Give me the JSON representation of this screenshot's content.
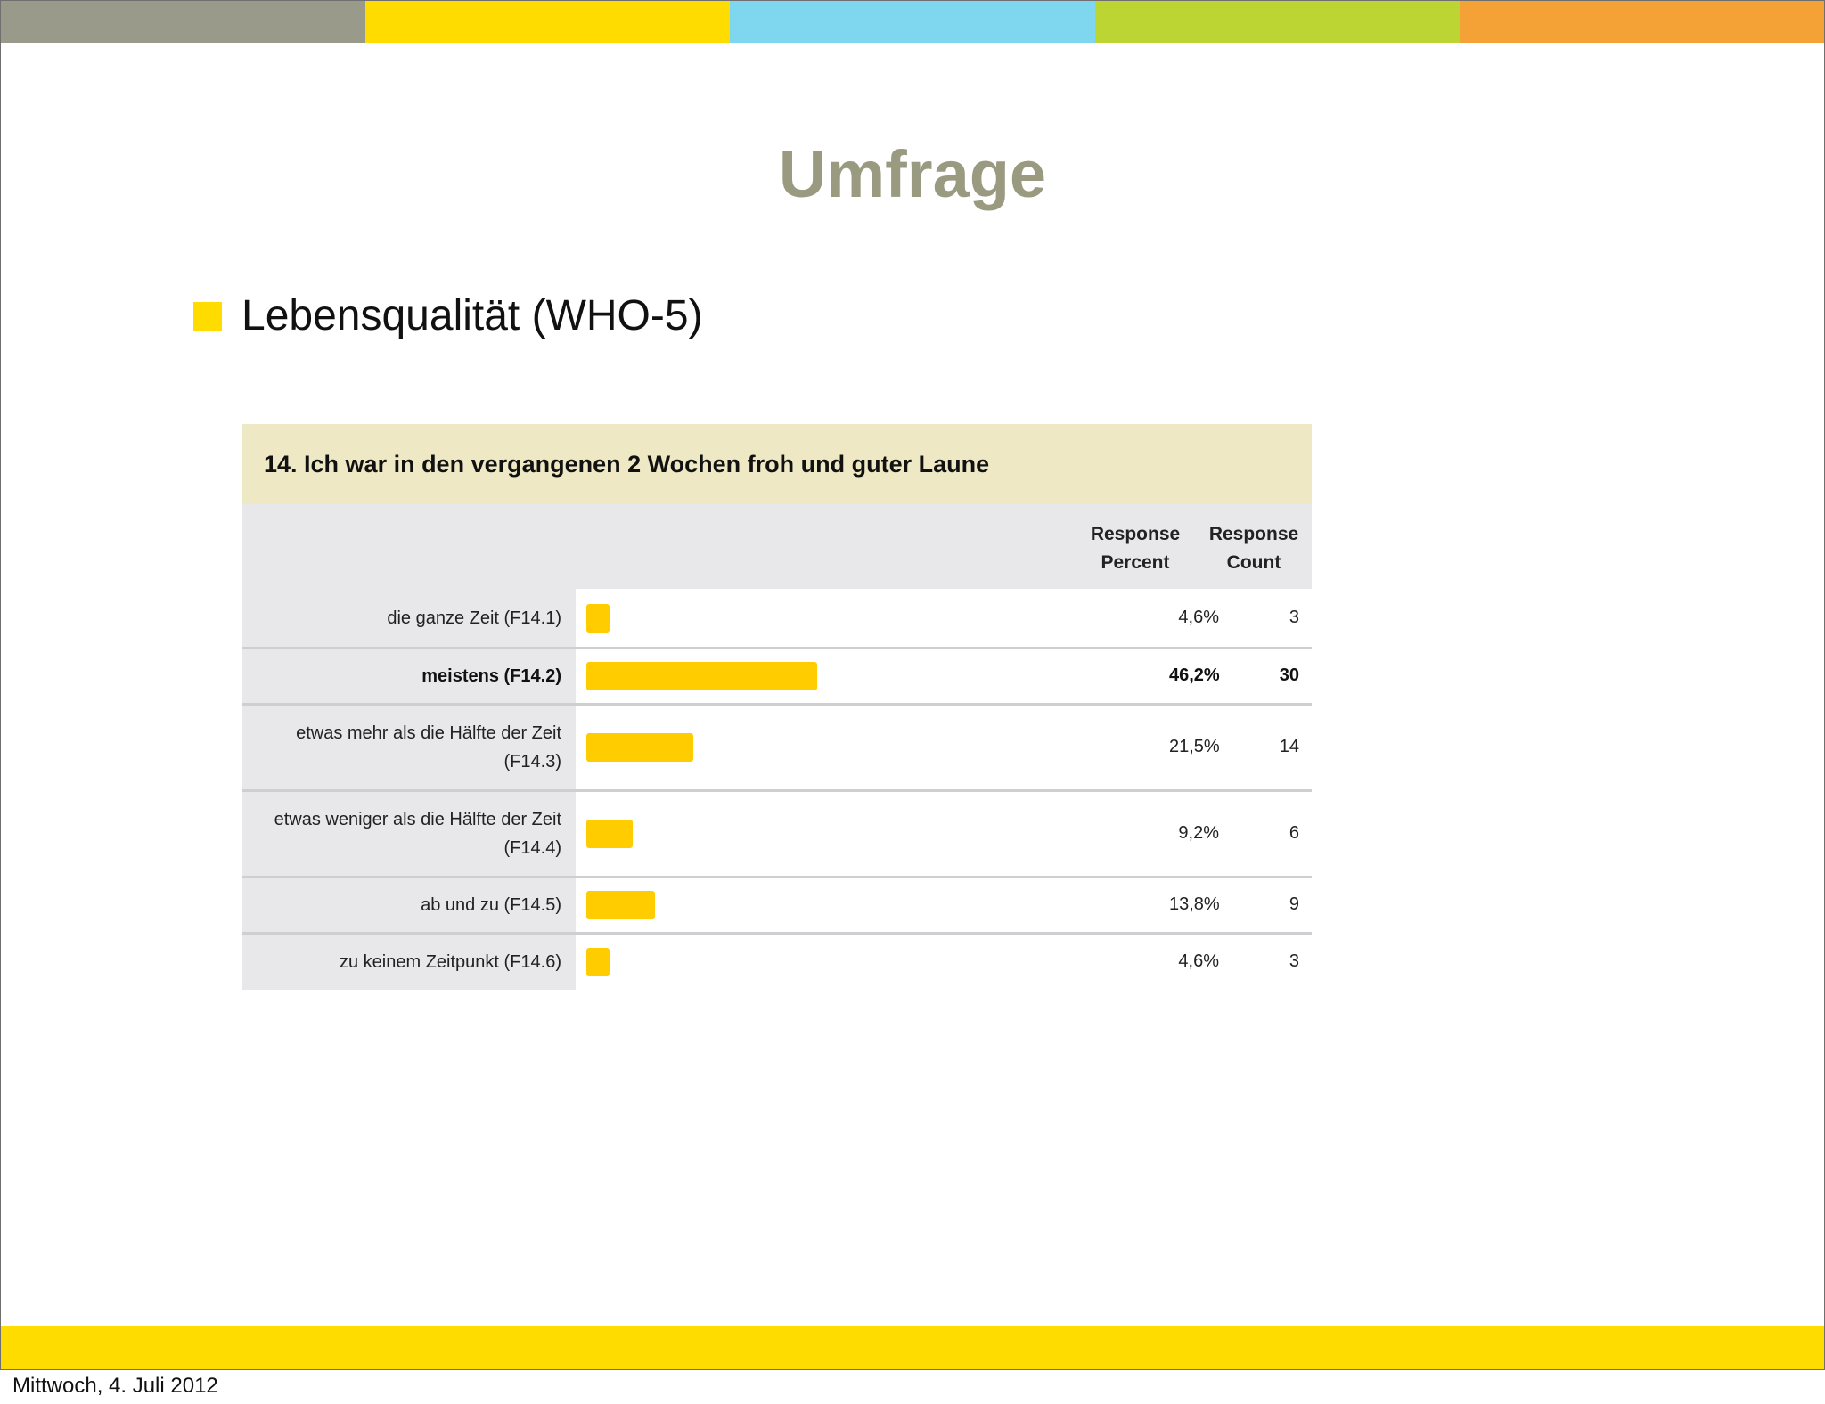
{
  "colors": {
    "stripe": [
      "#9a9a8a",
      "#ffdc00",
      "#7fd6ef",
      "#bcd533",
      "#f4a236"
    ],
    "bottom_band": "#ffdc00",
    "bullet": "#ffdc00",
    "bar": "#ffcc00"
  },
  "slide": {
    "title": "Umfrage",
    "bullet_text": "Lebensqualität (WHO-5)",
    "date": "Mittwoch, 4. Juli 2012"
  },
  "chart_data": {
    "type": "bar",
    "title": "14. Ich war in den vergangenen 2 Wochen froh und guter Laune",
    "orientation": "horizontal",
    "columns": {
      "percent": [
        "Response",
        "Percent"
      ],
      "count": [
        "Response",
        "Count"
      ]
    },
    "categories": [
      "die ganze Zeit (F14.1)",
      "meistens (F14.2)",
      "etwas mehr als die Hälfte der Zeit (F14.3)",
      "etwas weniger als die Hälfte der Zeit (F14.4)",
      "ab und zu (F14.5)",
      "zu keinem Zeitpunkt (F14.6)"
    ],
    "values": [
      4.6,
      46.2,
      21.5,
      9.2,
      13.8,
      4.6
    ],
    "percent_labels": [
      "4,6%",
      "46,2%",
      "21,5%",
      "9,2%",
      "13,8%",
      "4,6%"
    ],
    "counts": [
      3,
      30,
      14,
      6,
      9,
      3
    ],
    "highlighted_category": "meistens (F14.2)",
    "xlim": [
      0,
      100
    ]
  }
}
